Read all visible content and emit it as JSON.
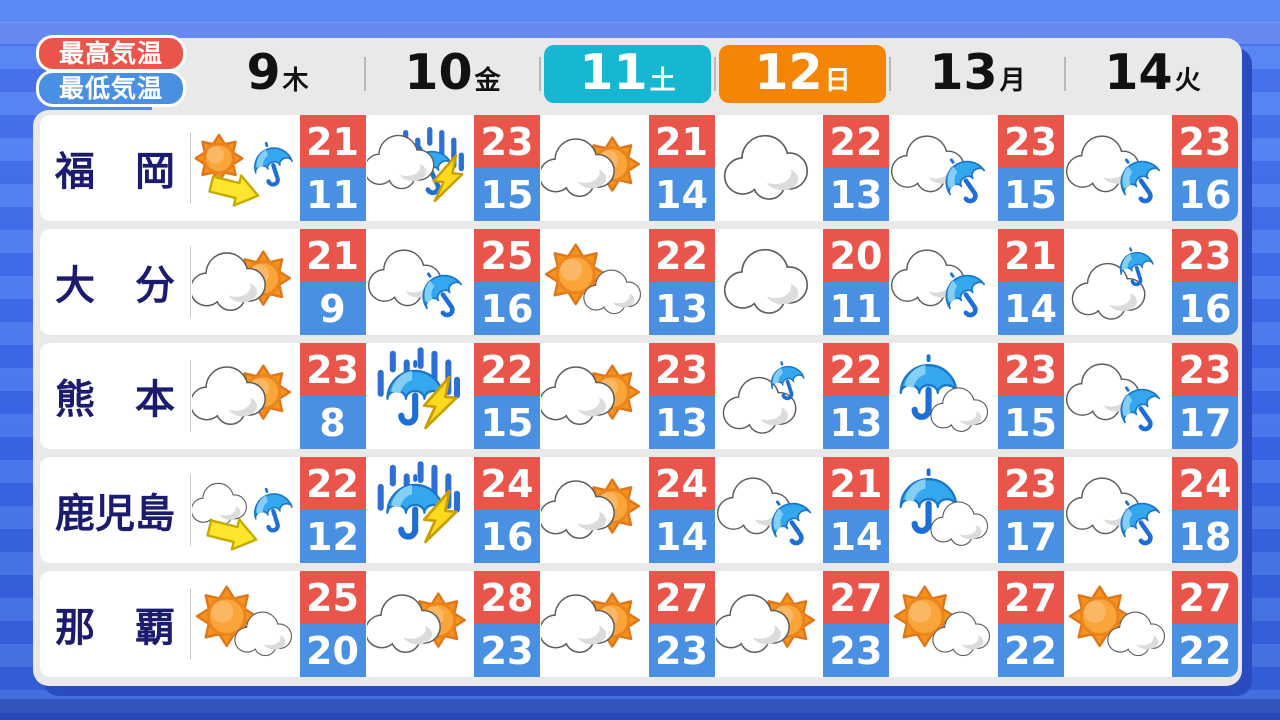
{
  "legend": {
    "high_label": "最高気温",
    "low_label": "最低気温"
  },
  "header": {
    "days": [
      {
        "date": "9",
        "weekday": "木",
        "highlight": ""
      },
      {
        "date": "10",
        "weekday": "金",
        "highlight": ""
      },
      {
        "date": "11",
        "weekday": "土",
        "highlight": "saturday"
      },
      {
        "date": "12",
        "weekday": "日",
        "highlight": "sunday"
      },
      {
        "date": "13",
        "weekday": "月",
        "highlight": ""
      },
      {
        "date": "14",
        "weekday": "火",
        "highlight": ""
      }
    ]
  },
  "colors": {
    "background_blue": "#3f6cee",
    "stripe_light": "#4e7ef5",
    "stripe_dark": "#3c68ec",
    "panel_gray": "#e9e9e9",
    "panel_shadow": "#2b4cc0",
    "high_red": "#e9554a",
    "low_blue": "#4a90e2",
    "saturday_cyan": "#17b6d2",
    "sunday_orange": "#f58506",
    "city_navy": "#1c1c6e",
    "day_text": "#111111"
  },
  "chart_data": {
    "type": "table",
    "columns": [
      "9木",
      "10金",
      "11土",
      "12日",
      "13月",
      "14火"
    ],
    "rows": [
      {
        "city": "福　岡",
        "weather": [
          "sun-then-umbrella",
          "cloud-rain-thunder",
          "cloud-sun",
          "cloud",
          "cloud-umbrella",
          "cloud-umbrella"
        ],
        "high": [
          21,
          23,
          21,
          22,
          23,
          23
        ],
        "low": [
          11,
          15,
          14,
          13,
          15,
          16
        ]
      },
      {
        "city": "大　分",
        "weather": [
          "cloud-sun",
          "cloud-umbrella",
          "sun-cloud",
          "cloud",
          "cloud-umbrella",
          "umbrella-over-cloud"
        ],
        "high": [
          21,
          25,
          22,
          20,
          21,
          23
        ],
        "low": [
          9,
          16,
          13,
          11,
          14,
          16
        ]
      },
      {
        "city": "熊　本",
        "weather": [
          "cloud-sun",
          "rain-thunder",
          "cloud-sun",
          "umbrella-over-cloud",
          "umbrella-cloud",
          "cloud-umbrella"
        ],
        "high": [
          23,
          22,
          23,
          22,
          23,
          23
        ],
        "low": [
          8,
          15,
          13,
          13,
          15,
          17
        ]
      },
      {
        "city": "鹿児島",
        "weather": [
          "cloud-then-umbrella",
          "rain-thunder",
          "cloud-sun",
          "cloud-umbrella",
          "umbrella-cloud",
          "cloud-umbrella"
        ],
        "high": [
          22,
          24,
          24,
          21,
          23,
          24
        ],
        "low": [
          12,
          16,
          14,
          14,
          17,
          18
        ]
      },
      {
        "city": "那　覇",
        "weather": [
          "sun-cloud",
          "cloud-sun",
          "cloud-sun",
          "cloud-sun",
          "sun-cloud",
          "sun-cloud"
        ],
        "high": [
          25,
          28,
          27,
          27,
          27,
          27
        ],
        "low": [
          20,
          23,
          23,
          23,
          22,
          22
        ]
      }
    ]
  }
}
